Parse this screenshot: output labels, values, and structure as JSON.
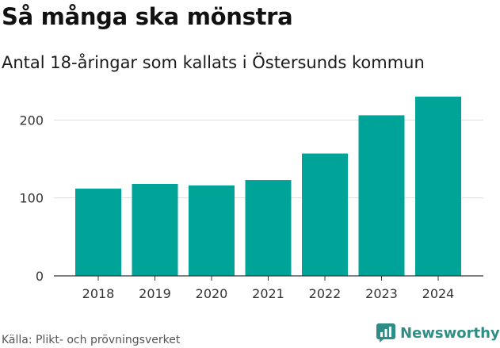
{
  "title": "Så många ska mönstra",
  "subtitle": "Antal 18-åringar som kallats i Östersunds kommun",
  "source": "Källa: Plikt- och prövningsverket",
  "brand": {
    "name": "Newsworthy",
    "color": "#2e8d86"
  },
  "colors": {
    "bar": "#00a398",
    "grid": "#dddddd",
    "axis": "#333333"
  },
  "chart_data": {
    "type": "bar",
    "title": "Så många ska mönstra",
    "subtitle": "Antal 18-åringar som kallats i Östersunds kommun",
    "xlabel": "",
    "ylabel": "",
    "categories": [
      "2018",
      "2019",
      "2020",
      "2021",
      "2022",
      "2023",
      "2024"
    ],
    "values": [
      112,
      118,
      116,
      123,
      157,
      206,
      230
    ],
    "yticks": [
      0,
      100,
      200
    ],
    "ylim": [
      0,
      240
    ],
    "grid": true
  }
}
